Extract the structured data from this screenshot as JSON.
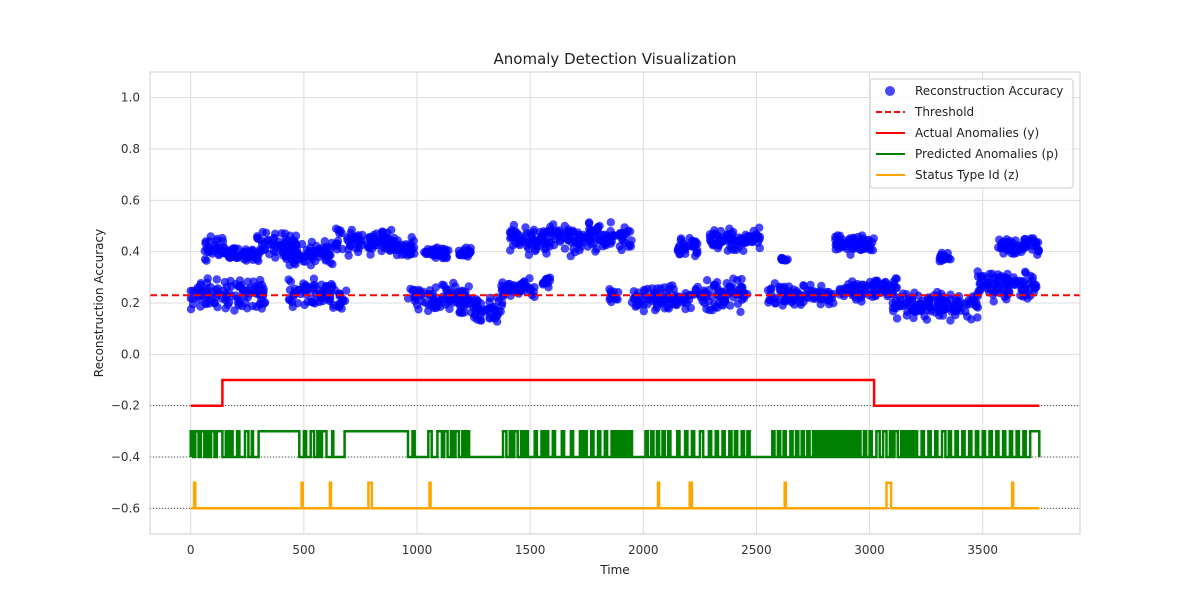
{
  "chart_data": {
    "type": "scatter",
    "title": "Anomaly Detection Visualization",
    "xlabel": "Time",
    "ylabel": "Reconstruction Accuracy",
    "xlim": [
      -180,
      3930
    ],
    "ylim": [
      -0.7,
      1.1
    ],
    "xticks": [
      0,
      500,
      1000,
      1500,
      2000,
      2500,
      3000,
      3500
    ],
    "xtick_labels": [
      "0",
      "500",
      "1000",
      "1500",
      "2000",
      "2500",
      "3000",
      "3500"
    ],
    "yticks": [
      -0.6,
      -0.4,
      -0.2,
      0.0,
      0.2,
      0.4,
      0.6,
      0.8,
      1.0
    ],
    "ytick_labels": [
      "−0.6",
      "−0.4",
      "−0.2",
      "0.0",
      "0.2",
      "0.4",
      "0.6",
      "0.8",
      "1.0"
    ],
    "grid": true,
    "legend_position": "top-right",
    "threshold": 0.23,
    "baselines": [
      -0.2,
      -0.4,
      -0.6
    ],
    "reconstruction_accuracy": {
      "name": "Reconstruction Accuracy",
      "color": "#0000ff",
      "segments": [
        {
          "x0": 0,
          "x1": 130,
          "lo": 0.15,
          "hi": 0.31
        },
        {
          "x0": 60,
          "x1": 150,
          "lo": 0.36,
          "hi": 0.46
        },
        {
          "x0": 130,
          "x1": 330,
          "lo": 0.17,
          "hi": 0.3
        },
        {
          "x0": 150,
          "x1": 300,
          "lo": 0.36,
          "hi": 0.42
        },
        {
          "x0": 290,
          "x1": 470,
          "lo": 0.37,
          "hi": 0.48
        },
        {
          "x0": 420,
          "x1": 630,
          "lo": 0.34,
          "hi": 0.45
        },
        {
          "x0": 430,
          "x1": 640,
          "lo": 0.17,
          "hi": 0.3
        },
        {
          "x0": 640,
          "x1": 900,
          "lo": 0.38,
          "hi": 0.5
        },
        {
          "x0": 650,
          "x1": 690,
          "lo": 0.16,
          "hi": 0.28
        },
        {
          "x0": 880,
          "x1": 990,
          "lo": 0.37,
          "hi": 0.46
        },
        {
          "x0": 960,
          "x1": 1240,
          "lo": 0.15,
          "hi": 0.28
        },
        {
          "x0": 1030,
          "x1": 1140,
          "lo": 0.37,
          "hi": 0.42
        },
        {
          "x0": 1180,
          "x1": 1240,
          "lo": 0.38,
          "hi": 0.42
        },
        {
          "x0": 1240,
          "x1": 1380,
          "lo": 0.12,
          "hi": 0.23
        },
        {
          "x0": 1370,
          "x1": 1520,
          "lo": 0.21,
          "hi": 0.3
        },
        {
          "x0": 1400,
          "x1": 1700,
          "lo": 0.38,
          "hi": 0.52
        },
        {
          "x0": 1550,
          "x1": 1590,
          "lo": 0.26,
          "hi": 0.3
        },
        {
          "x0": 1690,
          "x1": 1950,
          "lo": 0.39,
          "hi": 0.52
        },
        {
          "x0": 1850,
          "x1": 1890,
          "lo": 0.2,
          "hi": 0.26
        },
        {
          "x0": 1950,
          "x1": 2220,
          "lo": 0.16,
          "hi": 0.28
        },
        {
          "x0": 2150,
          "x1": 2240,
          "lo": 0.38,
          "hi": 0.46
        },
        {
          "x0": 2220,
          "x1": 2460,
          "lo": 0.16,
          "hi": 0.3
        },
        {
          "x0": 2290,
          "x1": 2530,
          "lo": 0.39,
          "hi": 0.5
        },
        {
          "x0": 2550,
          "x1": 2840,
          "lo": 0.18,
          "hi": 0.28
        },
        {
          "x0": 2610,
          "x1": 2640,
          "lo": 0.36,
          "hi": 0.38
        },
        {
          "x0": 2840,
          "x1": 3020,
          "lo": 0.38,
          "hi": 0.47
        },
        {
          "x0": 2860,
          "x1": 3030,
          "lo": 0.2,
          "hi": 0.3
        },
        {
          "x0": 3020,
          "x1": 3120,
          "lo": 0.22,
          "hi": 0.3
        },
        {
          "x0": 3100,
          "x1": 3480,
          "lo": 0.13,
          "hi": 0.25
        },
        {
          "x0": 3310,
          "x1": 3360,
          "lo": 0.36,
          "hi": 0.4
        },
        {
          "x0": 3470,
          "x1": 3740,
          "lo": 0.2,
          "hi": 0.33
        },
        {
          "x0": 3560,
          "x1": 3750,
          "lo": 0.38,
          "hi": 0.46
        }
      ]
    },
    "threshold_line": {
      "name": "Threshold",
      "color": "#ff0000",
      "value": 0.23
    },
    "actual_anomalies": {
      "name": "Actual Anomalies (y)",
      "color": "#ff0000",
      "points": [
        [
          0,
          -0.2
        ],
        [
          140,
          -0.2
        ],
        [
          140,
          -0.1
        ],
        [
          3020,
          -0.1
        ],
        [
          3020,
          -0.2
        ],
        [
          3750,
          -0.2
        ]
      ]
    },
    "predicted_anomalies": {
      "name": "Predicted Anomalies (p)",
      "color": "#008000",
      "low": -0.4,
      "high": -0.3,
      "high_intervals": [
        [
          0,
          10
        ],
        [
          20,
          35
        ],
        [
          45,
          60
        ],
        [
          70,
          80
        ],
        [
          90,
          105
        ],
        [
          115,
          140
        ],
        [
          155,
          165
        ],
        [
          175,
          185
        ],
        [
          205,
          215
        ],
        [
          240,
          255
        ],
        [
          270,
          275
        ],
        [
          300,
          480
        ],
        [
          500,
          510
        ],
        [
          530,
          545
        ],
        [
          560,
          570
        ],
        [
          580,
          600
        ],
        [
          625,
          630
        ],
        [
          680,
          960
        ],
        [
          980,
          990
        ],
        [
          1050,
          1065
        ],
        [
          1090,
          1110
        ],
        [
          1120,
          1135
        ],
        [
          1150,
          1160
        ],
        [
          1170,
          1185
        ],
        [
          1200,
          1210
        ],
        [
          1220,
          1230
        ],
        [
          1380,
          1395
        ],
        [
          1410,
          1420
        ],
        [
          1430,
          1445
        ],
        [
          1460,
          1470
        ],
        [
          1480,
          1490
        ],
        [
          1520,
          1530
        ],
        [
          1550,
          1560
        ],
        [
          1570,
          1580
        ],
        [
          1600,
          1610
        ],
        [
          1640,
          1650
        ],
        [
          1680,
          1690
        ],
        [
          1720,
          1730
        ],
        [
          1740,
          1750
        ],
        [
          1770,
          1780
        ],
        [
          1800,
          1810
        ],
        [
          1830,
          1840
        ],
        [
          1860,
          1870
        ],
        [
          1880,
          1890
        ],
        [
          1900,
          1905
        ],
        [
          1910,
          1920
        ],
        [
          1930,
          1940
        ],
        [
          1945,
          1950
        ],
        [
          2010,
          2020
        ],
        [
          2035,
          2045
        ],
        [
          2060,
          2070
        ],
        [
          2085,
          2095
        ],
        [
          2110,
          2120
        ],
        [
          2150,
          2160
        ],
        [
          2185,
          2195
        ],
        [
          2215,
          2225
        ],
        [
          2250,
          2265
        ],
        [
          2290,
          2300
        ],
        [
          2320,
          2330
        ],
        [
          2350,
          2360
        ],
        [
          2380,
          2390
        ],
        [
          2405,
          2415
        ],
        [
          2435,
          2445
        ],
        [
          2460,
          2470
        ],
        [
          2570,
          2580
        ],
        [
          2595,
          2605
        ],
        [
          2620,
          2630
        ],
        [
          2650,
          2660
        ],
        [
          2675,
          2685
        ],
        [
          2700,
          2710
        ],
        [
          2725,
          2735
        ],
        [
          2750,
          2760
        ],
        [
          2770,
          2780
        ],
        [
          2790,
          2800
        ],
        [
          2810,
          2820
        ],
        [
          2830,
          2840
        ],
        [
          2850,
          2860
        ],
        [
          2870,
          2880
        ],
        [
          2890,
          2900
        ],
        [
          2910,
          2920
        ],
        [
          2930,
          2940
        ],
        [
          2950,
          2960
        ],
        [
          2975,
          2985
        ],
        [
          3000,
          3010
        ],
        [
          3030,
          3045
        ],
        [
          3060,
          3075
        ],
        [
          3090,
          3100
        ],
        [
          3110,
          3125
        ],
        [
          3140,
          3150
        ],
        [
          3160,
          3170
        ],
        [
          3180,
          3190
        ],
        [
          3200,
          3210
        ],
        [
          3230,
          3240
        ],
        [
          3260,
          3270
        ],
        [
          3290,
          3300
        ],
        [
          3320,
          3335
        ],
        [
          3350,
          3360
        ],
        [
          3380,
          3390
        ],
        [
          3410,
          3420
        ],
        [
          3440,
          3450
        ],
        [
          3470,
          3480
        ],
        [
          3500,
          3510
        ],
        [
          3530,
          3540
        ],
        [
          3560,
          3570
        ],
        [
          3590,
          3600
        ],
        [
          3620,
          3630
        ],
        [
          3650,
          3660
        ],
        [
          3680,
          3690
        ],
        [
          3710,
          3750
        ]
      ]
    },
    "status_type": {
      "name": "Status Type Id (z)",
      "color": "#ffa500",
      "base": -0.6,
      "spike_height": -0.5,
      "spikes": [
        [
          15,
          20
        ],
        [
          490,
          495
        ],
        [
          615,
          620
        ],
        [
          785,
          800
        ],
        [
          1055,
          1060
        ],
        [
          2065,
          2070
        ],
        [
          2205,
          2215
        ],
        [
          2625,
          2630
        ],
        [
          3075,
          3095
        ],
        [
          3630,
          3635
        ]
      ]
    }
  },
  "legend": {
    "items": [
      {
        "label": "Reconstruction Accuracy",
        "kind": "marker",
        "color": "#0000ff"
      },
      {
        "label": "Threshold",
        "kind": "dashed",
        "color": "#ff0000"
      },
      {
        "label": "Actual Anomalies (y)",
        "kind": "solid",
        "color": "#ff0000"
      },
      {
        "label": "Predicted Anomalies (p)",
        "kind": "solid",
        "color": "#008000"
      },
      {
        "label": "Status Type Id (z)",
        "kind": "solid",
        "color": "#ffa500"
      }
    ]
  }
}
